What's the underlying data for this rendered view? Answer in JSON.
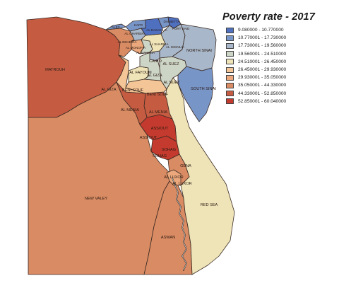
{
  "title": "Poverty rate - 2017",
  "colors": {
    "c1": "#4f6fbf",
    "c2": "#7895c8",
    "c3": "#a8b7c9",
    "c4": "#cdd5c6",
    "c5": "#efe4b8",
    "c6": "#f4c596",
    "c7": "#eba87c",
    "c8": "#d98b63",
    "c9": "#c55c42",
    "c10": "#c43a2e"
  },
  "legend": [
    {
      "label": "9.080000 - 10.770000",
      "color": "#4f6fbf"
    },
    {
      "label": "10.770001 - 17.730000",
      "color": "#7895c8"
    },
    {
      "label": "17.730001 - 19.560000",
      "color": "#a8b7c9"
    },
    {
      "label": "19.560001 - 24.510000",
      "color": "#cdd5c6"
    },
    {
      "label": "24.510001 - 26.450000",
      "color": "#efe4b8"
    },
    {
      "label": "26.450001 - 29.930000",
      "color": "#f4c596"
    },
    {
      "label": "29.930001 - 35.050000",
      "color": "#eba87c"
    },
    {
      "label": "35.050001 - 44.330000",
      "color": "#d98b63"
    },
    {
      "label": "44.330001 - 52.850000",
      "color": "#c55c42"
    },
    {
      "label": "52.850001 - 60.040000",
      "color": "#c43a2e"
    }
  ],
  "regions": {
    "matrouh": "MATROUH",
    "new_valley": "NEW VALEY",
    "red_sea": "RED SEA",
    "north_sinai": "NORTH SINAI",
    "south_sinai": "SOUTH SINAI",
    "al_giza_west": "AL GIZA",
    "al_giza": "AL GIZA",
    "al_fayoum": "AL FAYOUM",
    "beni_souf_a": "BENI SOUF",
    "beni_souf_b": "BENI SOUF",
    "al_menia_a": "AL MENIA",
    "al_menia_b": "AL MENIA",
    "assiout_a": "ASSIOUT",
    "assiout_b": "ASSIOUT",
    "sohag_a": "SOHAG",
    "sohag_b": "SOHAG",
    "gena": "GENA",
    "al_luxor_a": "AL LUXOR",
    "al_luxor_b": "AL LUXOR",
    "aswan": "ASWAN",
    "cairo": "CAIRO",
    "al_suez_a": "AL SUEZ",
    "al_suez_b": "AL SUEZ",
    "ismailia": "AL ISMAILIA",
    "al_sharkia": "AL SHARKIA",
    "al_beheira": "AL BEHEIRA",
    "al_monofia": "AL MONOFIA",
    "al_gharbia": "AL GHARBIA",
    "al_kalubia": "AL KALUBIA",
    "al_dakahlia": "AL DAKAHLIA",
    "damietta": "DAMIETTA",
    "alex": "ALEX",
    "kafr": "KAFR",
    "port_said": "PORT SAID"
  }
}
